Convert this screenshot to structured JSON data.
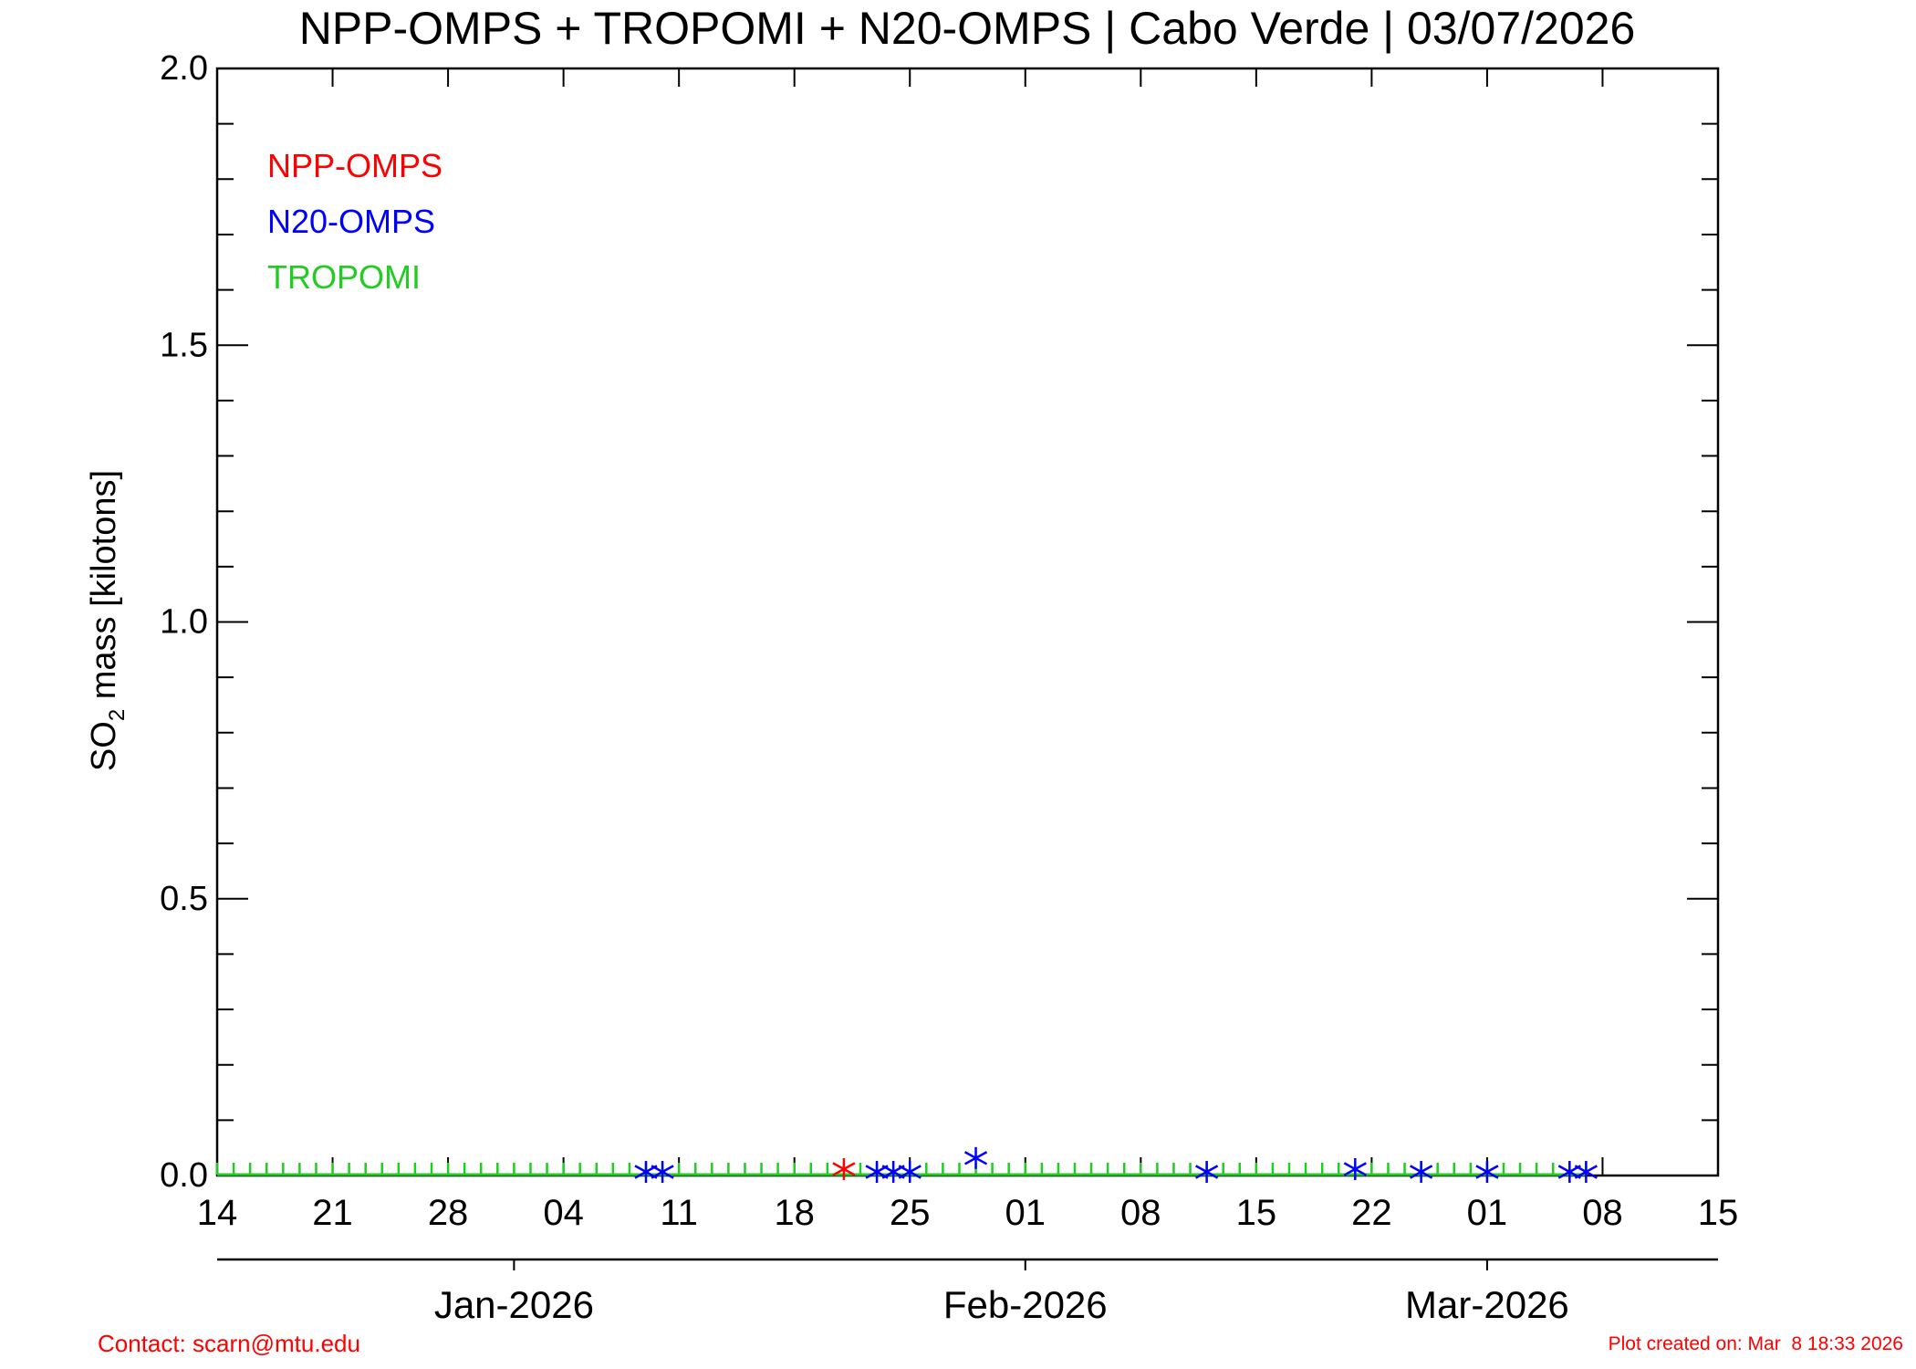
{
  "chart_data": {
    "type": "scatter",
    "title": "NPP-OMPS + TROPOMI + N20-OMPS | Cabo Verde | 03/07/2026",
    "ylabel_main": "SO",
    "ylabel_sub": "2",
    "ylabel_rest": " mass [kilotons]",
    "ylim": [
      0,
      2
    ],
    "yticks": [
      {
        "value": 0,
        "label": "0.0"
      },
      {
        "value": 0.5,
        "label": "0.5"
      },
      {
        "value": 1.0,
        "label": "1.0"
      },
      {
        "value": 1.5,
        "label": "1.5"
      },
      {
        "value": 2.0,
        "label": "2.0"
      }
    ],
    "y_minor_step": 0.1,
    "xlim": [
      "2025-12-14",
      "2026-03-15"
    ],
    "xticks": [
      {
        "date": "2025-12-14",
        "label": "14"
      },
      {
        "date": "2025-12-21",
        "label": "21"
      },
      {
        "date": "2025-12-28",
        "label": "28"
      },
      {
        "date": "2026-01-04",
        "label": "04"
      },
      {
        "date": "2026-01-11",
        "label": "11"
      },
      {
        "date": "2026-01-18",
        "label": "18"
      },
      {
        "date": "2026-01-25",
        "label": "25"
      },
      {
        "date": "2026-02-01",
        "label": "01"
      },
      {
        "date": "2026-02-08",
        "label": "08"
      },
      {
        "date": "2026-02-15",
        "label": "15"
      },
      {
        "date": "2026-02-22",
        "label": "22"
      },
      {
        "date": "2026-03-01",
        "label": "01"
      },
      {
        "date": "2026-03-08",
        "label": "08"
      },
      {
        "date": "2026-03-15",
        "label": "15"
      }
    ],
    "month_axis": [
      {
        "date": "2026-01-01",
        "label": "Jan-2026"
      },
      {
        "date": "2026-02-01",
        "label": "Feb-2026"
      },
      {
        "date": "2026-03-01",
        "label": "Mar-2026"
      }
    ],
    "grid": false,
    "legend_position": "top-left",
    "series": [
      {
        "name": "NPP-OMPS",
        "color": "#ff0000",
        "marker": "asterisk",
        "points": [
          {
            "x": "2026-01-21",
            "y": 0.005
          }
        ]
      },
      {
        "name": "N20-OMPS",
        "color": "#0000ff",
        "marker": "asterisk",
        "points": [
          {
            "x": "2026-01-09",
            "y": 0.0
          },
          {
            "x": "2026-01-10",
            "y": 0.0
          },
          {
            "x": "2026-01-23",
            "y": 0.0
          },
          {
            "x": "2026-01-24",
            "y": 0.0
          },
          {
            "x": "2026-01-25",
            "y": 0.0
          },
          {
            "x": "2026-01-29",
            "y": 0.025
          },
          {
            "x": "2026-02-12",
            "y": 0.0
          },
          {
            "x": "2026-02-21",
            "y": 0.005
          },
          {
            "x": "2026-02-25",
            "y": 0.0
          },
          {
            "x": "2026-03-01",
            "y": 0.0
          },
          {
            "x": "2026-03-06",
            "y": 0.0
          },
          {
            "x": "2026-03-07",
            "y": 0.0
          }
        ]
      },
      {
        "name": "TROPOMI",
        "color": "#22cc22",
        "marker": "line",
        "x_start": "2025-12-14",
        "x_end": "2026-03-07",
        "y": 0.0
      }
    ]
  },
  "footer": {
    "contact": "Contact: scarn@mtu.edu",
    "created": "Plot created on: Mar  8 18:33 2026",
    "color": "#ff0000"
  }
}
